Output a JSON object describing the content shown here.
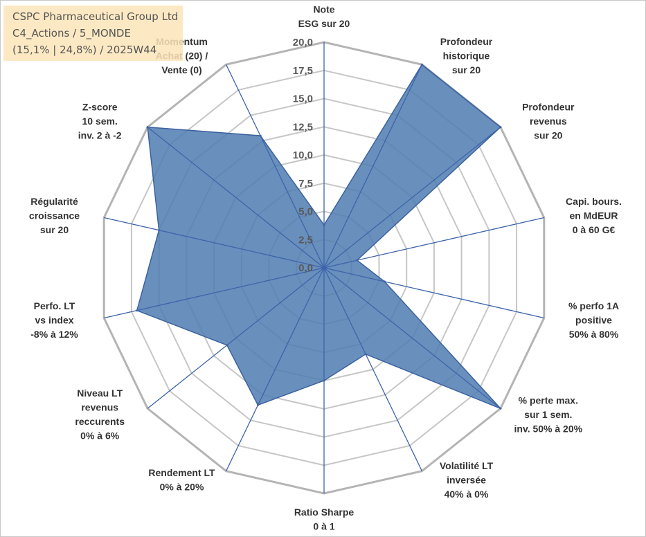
{
  "info_box": {
    "company": "CSPC Pharmaceutical Group Ltd",
    "portfolio": "C4_Actions / 5_MONDE",
    "stats": "(15,1% | 24,8%) / 2025W44"
  },
  "colors": {
    "area_fill": "#4f7bb0",
    "area_stroke": "#3a62a0",
    "spoke": "#3c64aa",
    "grid": "#c6c6c6",
    "outer_grid": "#b4b4b4",
    "info_bg": "#fce5b9"
  },
  "chart_data": {
    "type": "radar",
    "title": "",
    "rmin": 0,
    "rmax": 20,
    "tick_step": 2.5,
    "tick_labels": [
      "0,0",
      "2,5",
      "5,0",
      "7,5",
      "10,0",
      "12,5",
      "15,0",
      "17,5",
      "20,0"
    ],
    "categories": [
      [
        "Note",
        "ESG sur 20"
      ],
      [
        "Profondeur",
        "historique",
        "sur 20"
      ],
      [
        "Profondeur",
        "revenus",
        "sur 20"
      ],
      [
        "Capi. bours.",
        "en MdEUR",
        "0 à 60 G€"
      ],
      [
        "% perfo 1A",
        "positive",
        "50% à 80%"
      ],
      [
        "% perte max.",
        "sur 1 sem.",
        "inv. 50% à 20%"
      ],
      [
        "Volatilité LT",
        "inversée",
        "40% à 0%"
      ],
      [
        "Ratio Sharpe",
        "0 à 1"
      ],
      [
        "Rendement LT",
        "0% à 20%"
      ],
      [
        "Niveau LT",
        "revenus",
        "reccurents",
        "0% à 6%"
      ],
      [
        "Perfo. LT",
        "vs index",
        "-8% à 12%"
      ],
      [
        "Régularité",
        "croissance",
        "sur 20"
      ],
      [
        "Z-score",
        "10 sem.",
        "inv. 2 à -2"
      ],
      [
        "Momentum",
        "Achat (20) /",
        "Vente (0)"
      ]
    ],
    "series": [
      {
        "name": "CSPC Pharmaceutical Group Ltd",
        "values": [
          3.8,
          20,
          20,
          3,
          5.5,
          20,
          8.5,
          10,
          13.5,
          11,
          17,
          15,
          20,
          13
        ]
      }
    ]
  }
}
